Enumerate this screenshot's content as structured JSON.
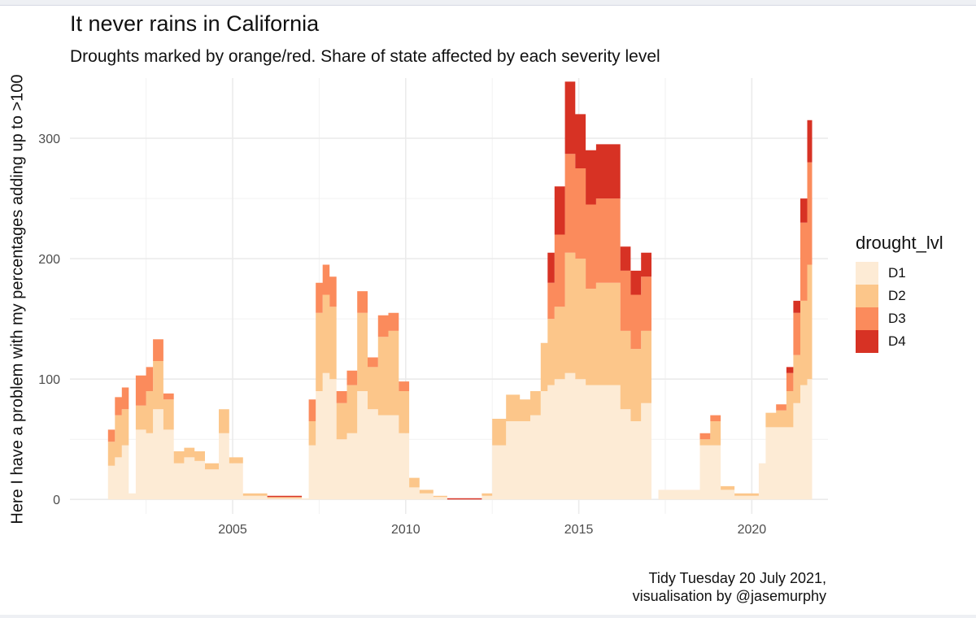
{
  "chart_data": {
    "type": "area",
    "title": "It never rains in California",
    "subtitle": "Droughts marked by orange/red. Share of state affected by each severity level",
    "xlabel": "",
    "ylabel": "Here I have a problem with my percentages adding up to >100",
    "caption": [
      "Tidy Tuesday 20 July 2021,",
      "visualisation by @jasemurphy"
    ],
    "xlim": [
      2000.3,
      2022.2
    ],
    "ylim": [
      -12,
      350
    ],
    "x_ticks": [
      2005,
      2010,
      2015,
      2020
    ],
    "x_tick_labels": [
      "2005",
      "2010",
      "2015",
      "2020"
    ],
    "y_ticks": [
      0,
      100,
      200,
      300
    ],
    "y_tick_labels": [
      "0",
      "100",
      "200",
      "300"
    ],
    "grid": true,
    "legend_position": "right",
    "legend_title": "drought_lvl",
    "stacked": true,
    "x": [
      2001.4,
      2001.6,
      2001.8,
      2002.0,
      2002.2,
      2002.5,
      2002.7,
      2003.0,
      2003.3,
      2003.6,
      2003.9,
      2004.2,
      2004.6,
      2004.9,
      2005.3,
      2006.0,
      2006.6,
      2007.0,
      2007.2,
      2007.4,
      2007.6,
      2007.8,
      2008.0,
      2008.3,
      2008.6,
      2008.9,
      2009.2,
      2009.5,
      2009.8,
      2010.1,
      2010.4,
      2010.8,
      2011.2,
      2011.8,
      2012.2,
      2012.5,
      2012.9,
      2013.3,
      2013.6,
      2013.9,
      2014.1,
      2014.3,
      2014.6,
      2014.9,
      2015.2,
      2015.5,
      2015.8,
      2016.2,
      2016.5,
      2016.8,
      2017.1,
      2017.3,
      2017.8,
      2018.2,
      2018.5,
      2018.8,
      2019.1,
      2019.5,
      2019.9,
      2020.2,
      2020.4,
      2020.7,
      2021.0,
      2021.2,
      2021.4,
      2021.6
    ],
    "series": [
      {
        "name": "D1",
        "color": "#fdebd5",
        "values": [
          28,
          35,
          45,
          5,
          58,
          55,
          75,
          58,
          30,
          35,
          32,
          25,
          55,
          30,
          3,
          1,
          1,
          1,
          45,
          90,
          105,
          100,
          50,
          55,
          90,
          75,
          70,
          70,
          55,
          10,
          5,
          2,
          0,
          0,
          3,
          45,
          65,
          65,
          70,
          90,
          95,
          100,
          105,
          100,
          95,
          95,
          95,
          75,
          65,
          80,
          0,
          8,
          8,
          8,
          45,
          45,
          8,
          3,
          3,
          30,
          60,
          60,
          60,
          80,
          95,
          100
        ]
      },
      {
        "name": "D2",
        "color": "#fcc68a",
        "values": [
          20,
          35,
          30,
          0,
          20,
          35,
          40,
          25,
          10,
          8,
          8,
          5,
          20,
          5,
          2,
          1,
          1,
          0,
          20,
          65,
          65,
          60,
          30,
          40,
          65,
          35,
          65,
          70,
          35,
          8,
          3,
          1,
          0,
          0,
          2,
          22,
          22,
          18,
          20,
          40,
          55,
          60,
          100,
          100,
          80,
          85,
          85,
          65,
          60,
          60,
          0,
          0,
          0,
          0,
          5,
          20,
          3,
          2,
          2,
          0,
          12,
          14,
          30,
          40,
          70,
          95
        ]
      },
      {
        "name": "D3",
        "color": "#fb8b5c",
        "values": [
          10,
          15,
          18,
          0,
          25,
          20,
          18,
          5,
          0,
          0,
          0,
          0,
          0,
          0,
          0,
          0,
          0,
          0,
          18,
          25,
          25,
          25,
          10,
          12,
          18,
          8,
          18,
          15,
          8,
          0,
          0,
          0,
          0,
          0,
          0,
          0,
          0,
          0,
          0,
          0,
          30,
          60,
          82,
          75,
          70,
          70,
          70,
          50,
          45,
          45,
          0,
          0,
          0,
          0,
          5,
          5,
          0,
          0,
          0,
          0,
          0,
          5,
          15,
          35,
          65,
          85
        ]
      },
      {
        "name": "D4",
        "color": "#d73224",
        "values": [
          0,
          0,
          0,
          0,
          0,
          0,
          0,
          0,
          0,
          0,
          0,
          0,
          0,
          0,
          0,
          1,
          1,
          0,
          0,
          0,
          0,
          0,
          0,
          0,
          0,
          0,
          0,
          0,
          0,
          0,
          0,
          0,
          1,
          1,
          0,
          0,
          0,
          0,
          0,
          0,
          25,
          40,
          60,
          45,
          45,
          45,
          45,
          20,
          20,
          20,
          0,
          0,
          0,
          0,
          0,
          0,
          0,
          0,
          0,
          0,
          0,
          0,
          5,
          10,
          20,
          35
        ]
      }
    ]
  }
}
